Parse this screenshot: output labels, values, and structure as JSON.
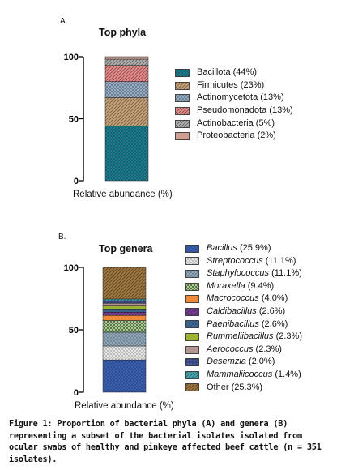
{
  "charts": [
    {
      "panel": "A.",
      "title": "Top phyla",
      "xlabel": "Relative abundance (%)",
      "y_ticks": [
        "0",
        "50",
        "100"
      ],
      "legend": [
        {
          "name": "Bacillota",
          "value": "(44%)",
          "italic": false
        },
        {
          "name": "Firmicutes",
          "value": "(23%)",
          "italic": false
        },
        {
          "name": "Actinomycetota",
          "value": "(13%)",
          "italic": false
        },
        {
          "name": "Pseudomonadota",
          "value": "(13%)",
          "italic": false
        },
        {
          "name": "Actinobacteria",
          "value": "(5%)",
          "italic": false
        },
        {
          "name": "Proteobacteria",
          "value": "(2%)",
          "italic": false
        }
      ]
    },
    {
      "panel": "B.",
      "title": "Top genera",
      "xlabel": "Relative abundance (%)",
      "y_ticks": [
        "0",
        "50",
        "100"
      ],
      "legend": [
        {
          "name": "Bacillus",
          "value": "(25.9%)",
          "italic": true
        },
        {
          "name": "Streptococcus",
          "value": "(11.1%)",
          "italic": true
        },
        {
          "name": "Staphylococcus",
          "value": "(11.1%)",
          "italic": true
        },
        {
          "name": "Moraxella",
          "value": "(9.4%)",
          "italic": true
        },
        {
          "name": "Macrococcus",
          "value": "(4.0%)",
          "italic": true
        },
        {
          "name": "Caldibacillus",
          "value": "(2.6%)",
          "italic": true
        },
        {
          "name": "Paenibacillus",
          "value": "(2.6%)",
          "italic": true
        },
        {
          "name": "Rummeliibacillus",
          "value": "(2.3%)",
          "italic": true
        },
        {
          "name": "Aerococcus",
          "value": "(2.3%)",
          "italic": true
        },
        {
          "name": "Desemzia",
          "value": "(2.0%)",
          "italic": true
        },
        {
          "name": "Mammaliicoccus",
          "value": "(1.4%)",
          "italic": true
        },
        {
          "name": "Other",
          "value": "(25.3%)",
          "italic": false
        }
      ]
    }
  ],
  "caption": "Figure 1: Proportion of bacterial phyla (A) and genera (B) representing a subset of the bacterial isolates isolated from ocular swabs of healthy and pinkeye affected beef cattle (n = 351 isolates).",
  "chart_data": [
    {
      "type": "bar",
      "stacked": true,
      "title": "Top phyla",
      "xlabel": "Relative abundance (%)",
      "ylabel": "",
      "ylim": [
        0,
        100
      ],
      "yticks": [
        0,
        50,
        100
      ],
      "legend_position": "right",
      "series": [
        {
          "name": "Bacillota",
          "value": 44,
          "color": "#1c7a8c",
          "pattern": "dots"
        },
        {
          "name": "Firmicutes",
          "value": 23,
          "color": "#c9a47a",
          "pattern": "diag"
        },
        {
          "name": "Actinomycetota",
          "value": 13,
          "color": "#9ab4cc",
          "pattern": "cross"
        },
        {
          "name": "Pseudomonadota",
          "value": 13,
          "color": "#e88a8a",
          "pattern": "diag"
        },
        {
          "name": "Actinobacteria",
          "value": 5,
          "color": "#b0b0b0",
          "pattern": "diag"
        },
        {
          "name": "Proteobacteria",
          "value": 2,
          "color": "#f0b8a8",
          "pattern": "vert"
        }
      ]
    },
    {
      "type": "bar",
      "stacked": true,
      "title": "Top genera",
      "xlabel": "Relative abundance (%)",
      "ylabel": "",
      "ylim": [
        0,
        100
      ],
      "yticks": [
        0,
        50,
        100
      ],
      "legend_position": "right",
      "series": [
        {
          "name": "Bacillus",
          "value": 25.9,
          "color": "#3a5fb0",
          "pattern": "dots"
        },
        {
          "name": "Streptococcus",
          "value": 11.1,
          "color": "#e6e6e6",
          "pattern": "dots"
        },
        {
          "name": "Staphylococcus",
          "value": 11.1,
          "color": "#8fa6b8",
          "pattern": "dots"
        },
        {
          "name": "Moraxella",
          "value": 9.4,
          "color": "#a8cf8e",
          "pattern": "checker"
        },
        {
          "name": "Macrococcus",
          "value": 4.0,
          "color": "#ef8a3a",
          "pattern": "solid"
        },
        {
          "name": "Caldibacillus",
          "value": 2.6,
          "color": "#7a3f9a",
          "pattern": "diag"
        },
        {
          "name": "Paenibacillus",
          "value": 2.6,
          "color": "#3f6a96",
          "pattern": "dots"
        },
        {
          "name": "Rummeliibacillus",
          "value": 2.3,
          "color": "#b8cf3a",
          "pattern": "vert"
        },
        {
          "name": "Aerococcus",
          "value": 2.3,
          "color": "#c8a8a8",
          "pattern": "horiz"
        },
        {
          "name": "Desemzia",
          "value": 2.0,
          "color": "#4a5aa0",
          "pattern": "grid"
        },
        {
          "name": "Mammaliicoccus",
          "value": 1.4,
          "color": "#4aa8b0",
          "pattern": "diag"
        },
        {
          "name": "Other",
          "value": 25.3,
          "color": "#a07840",
          "pattern": "diag"
        }
      ]
    }
  ]
}
